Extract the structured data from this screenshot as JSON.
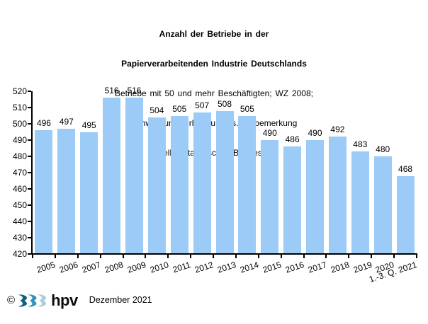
{
  "header": {
    "title_line1": "Anzahl der Betriebe in der",
    "title_line2": "Papierverarbeitenden Industrie Deutschlands",
    "subtitle_line1": "Betriebe mit 50 und mehr Beschäftigten; WZ 2008;",
    "subtitle_line2": "Schwerpunktverlagerung  s. Vorbemerkung",
    "source_line": "Quelle: Statistisches Bundesamt"
  },
  "chart_data": {
    "type": "bar",
    "title": "Anzahl der Betriebe in der Papierverarbeitenden Industrie Deutschlands",
    "categories": [
      "2005",
      "2006",
      "2007",
      "2008",
      "2009",
      "2010",
      "2011",
      "2012",
      "2013",
      "2014",
      "2015",
      "2016",
      "2017",
      "2018",
      "2019",
      "2020",
      "1.-3. Q. 2021"
    ],
    "values": [
      496,
      497,
      495,
      516,
      516,
      504,
      505,
      507,
      508,
      505,
      490,
      486,
      490,
      492,
      483,
      480,
      468
    ],
    "xlabel": "",
    "ylabel": "",
    "ylim": [
      420,
      520
    ],
    "ytick_step": 10,
    "grid": false,
    "legend": "none",
    "data_labels": true,
    "bar_color": "#9CCBF7",
    "axis_color": "#000000"
  },
  "footer": {
    "copyright": "©",
    "logo_text": "hpv",
    "date_label": "Dezember 2021",
    "logo_colors": [
      "#115F7E",
      "#3293BB",
      "#A6CEDC"
    ]
  }
}
